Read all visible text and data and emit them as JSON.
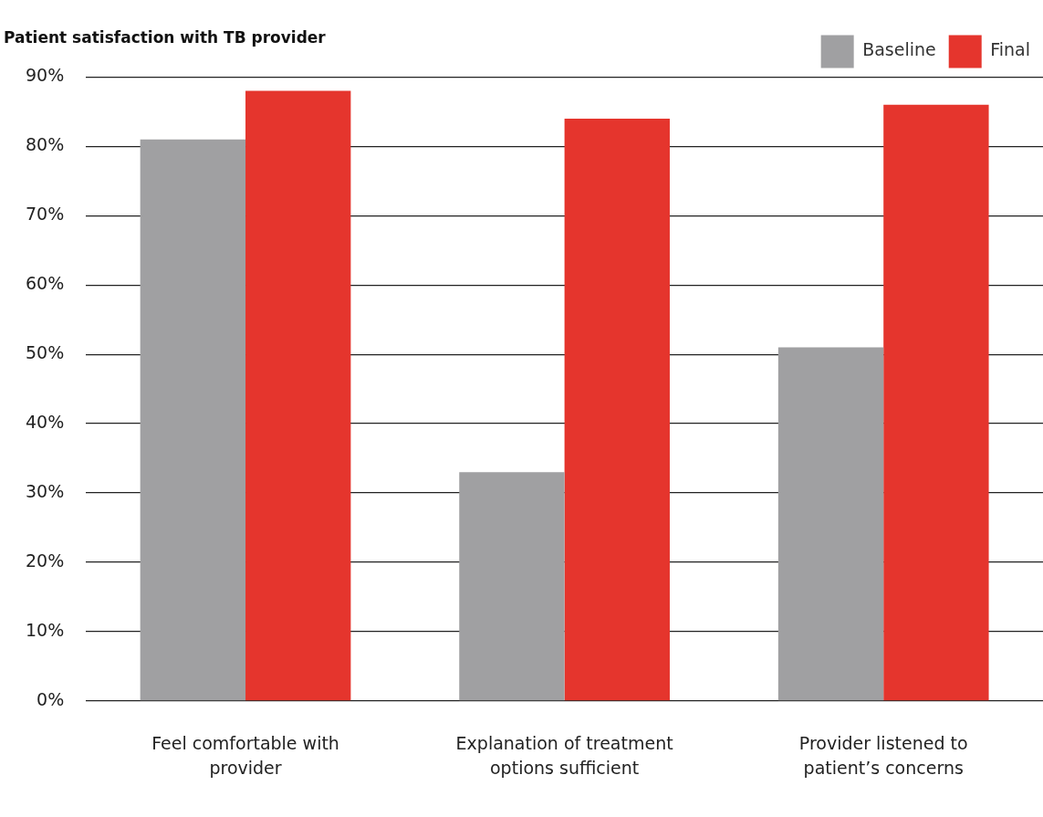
{
  "chart_data": {
    "type": "bar",
    "title": "Patient satisfaction with TB provider",
    "categories": [
      "Feel comfortable with provider",
      "Explanation of treatment options sufficient",
      "Provider listened to patient’s concerns"
    ],
    "series": [
      {
        "name": "Baseline",
        "color": "#a0a0a2",
        "values": [
          81,
          33,
          51
        ]
      },
      {
        "name": "Final",
        "color": "#e5352d",
        "values": [
          88,
          84,
          86
        ]
      }
    ],
    "ylim": [
      0,
      90
    ],
    "yticks": [
      {
        "value": 0,
        "label": "0%"
      },
      {
        "value": 10,
        "label": "10%"
      },
      {
        "value": 20,
        "label": "20%"
      },
      {
        "value": 30,
        "label": "30%"
      },
      {
        "value": 40,
        "label": "40%"
      },
      {
        "value": 50,
        "label": "50%"
      },
      {
        "value": 60,
        "label": "60%"
      },
      {
        "value": 70,
        "label": "70%"
      },
      {
        "value": 80,
        "label": "80%"
      },
      {
        "value": 90,
        "label": "90%"
      }
    ],
    "grid": "y",
    "legend": "top right"
  }
}
